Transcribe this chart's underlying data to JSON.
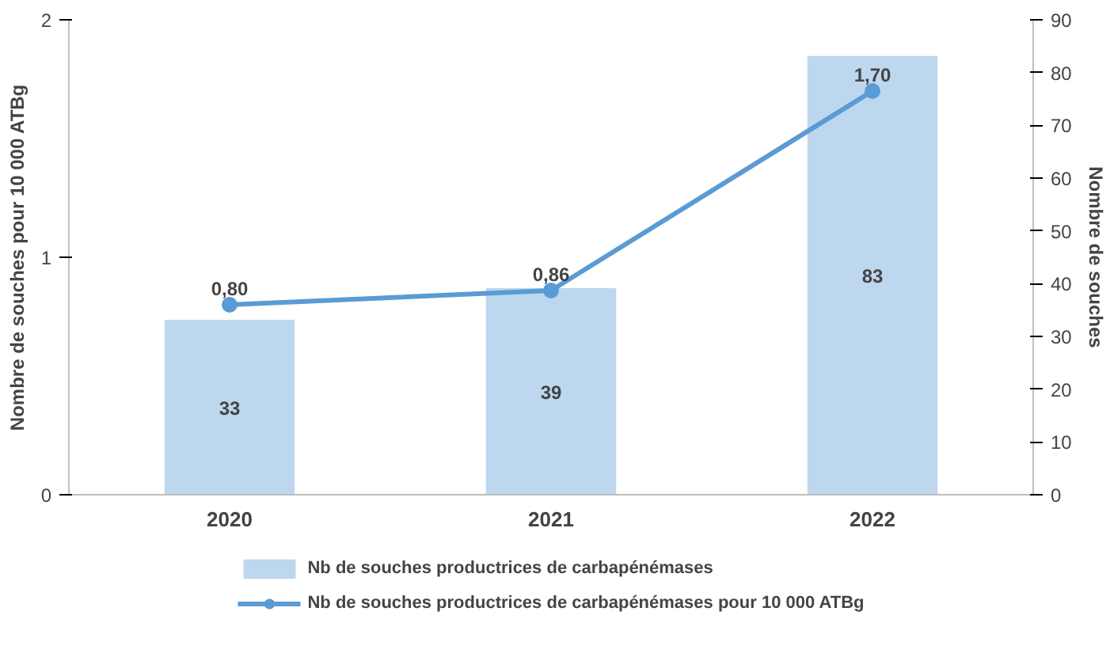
{
  "chart_data": {
    "type": "bar",
    "categories": [
      "2020",
      "2021",
      "2022"
    ],
    "ylabel": "Nombre de souches pour 10 000 ATBg",
    "y2label": "Nombre de souches",
    "ylim": [
      0,
      2
    ],
    "yticks": [
      0,
      1,
      2
    ],
    "y2lim": [
      0,
      90
    ],
    "y2ticks": [
      0,
      10,
      20,
      30,
      40,
      50,
      60,
      70,
      80,
      90
    ],
    "grid": false,
    "legend": "bottom",
    "marker": "circle",
    "line_style": "solid",
    "series": [
      {
        "name": "Nb de souches productrices de carbapénémases",
        "axis": "y2",
        "color": "#bdd7ee",
        "values": [
          33,
          39,
          83
        ],
        "value_labels": [
          "33",
          "39",
          "83"
        ]
      },
      {
        "name": "Nb de souches productrices de carbapénémases pour 10 000 ATBg",
        "type": "line",
        "color": "#5b9bd5",
        "values": [
          0.8,
          0.86,
          1.7
        ],
        "value_labels": [
          "0,80",
          "0,86",
          "1,70"
        ]
      }
    ]
  }
}
